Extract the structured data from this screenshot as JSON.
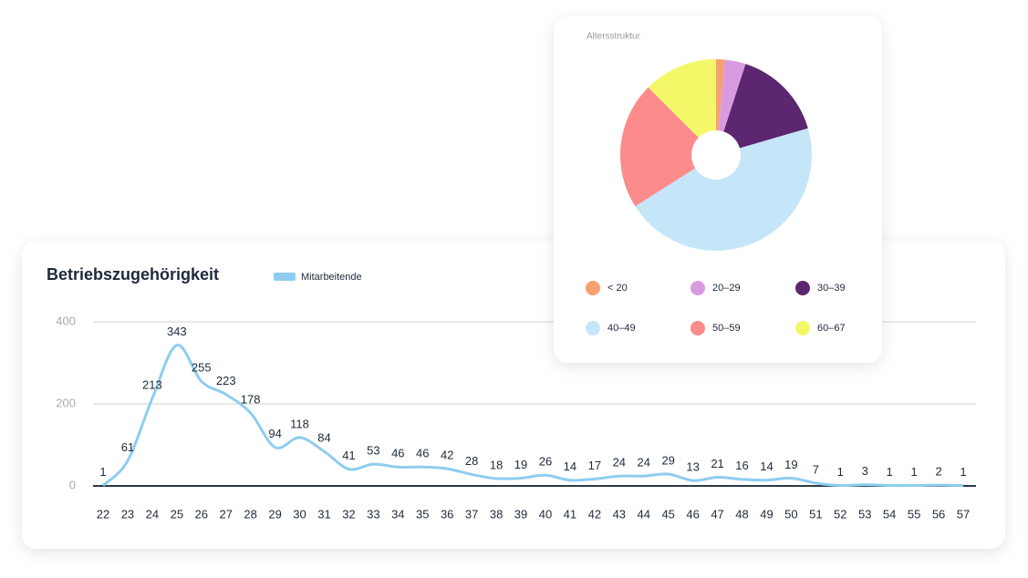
{
  "chart_data": [
    {
      "type": "line",
      "title": "Betriebszugehörigkeit",
      "categories": [
        "22",
        "23",
        "24",
        "25",
        "26",
        "27",
        "28",
        "29",
        "30",
        "31",
        "32",
        "33",
        "34",
        "35",
        "36",
        "37",
        "38",
        "39",
        "40",
        "41",
        "42",
        "43",
        "44",
        "45",
        "46",
        "47",
        "48",
        "49",
        "50",
        "51",
        "52",
        "53",
        "54",
        "55",
        "56",
        "57"
      ],
      "series": [
        {
          "name": "Mitarbeitende",
          "color": "#8ecdf0",
          "values": [
            1,
            61,
            213,
            343,
            255,
            223,
            178,
            94,
            118,
            84,
            41,
            53,
            46,
            46,
            42,
            28,
            18,
            19,
            26,
            14,
            17,
            24,
            24,
            29,
            13,
            21,
            16,
            14,
            19,
            7,
            1,
            3,
            1,
            1,
            2,
            1
          ]
        }
      ],
      "ylim": [
        0,
        400
      ],
      "yticks": [
        0,
        200,
        400
      ],
      "grid": true
    },
    {
      "type": "pie",
      "title": "Altersstruktur",
      "categories": [
        "< 20",
        "20–29",
        "30–39",
        "40–49",
        "50–59",
        "60–67"
      ],
      "values": [
        1.5,
        3.5,
        15.5,
        45.5,
        21.5,
        12.5
      ],
      "colors": [
        "#f7a072",
        "#d99be0",
        "#5c2670",
        "#c5e6f8",
        "#fc8b8b",
        "#f4f868"
      ]
    }
  ]
}
